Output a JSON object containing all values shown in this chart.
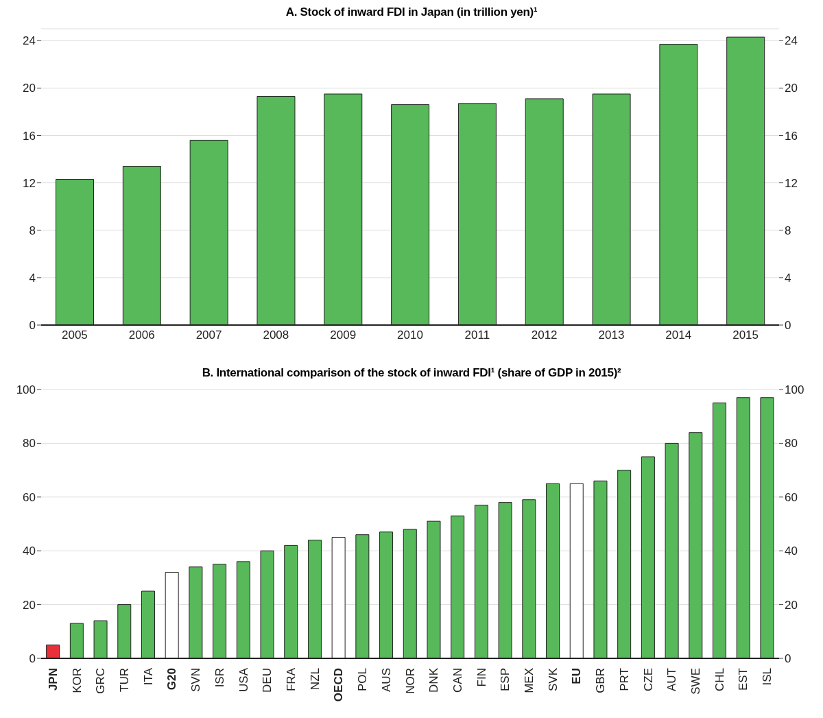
{
  "chart_data": [
    {
      "type": "bar",
      "title": "A. Stock of inward FDI in Japan (in trillion yen)¹",
      "categories": [
        "2005",
        "2006",
        "2007",
        "2008",
        "2009",
        "2010",
        "2011",
        "2012",
        "2013",
        "2014",
        "2015"
      ],
      "values": [
        12.3,
        13.4,
        15.6,
        19.3,
        19.5,
        18.6,
        18.7,
        19.1,
        19.5,
        23.7,
        24.3
      ],
      "color": "#57b95a",
      "ylim": [
        0,
        25
      ],
      "yticks": [
        0,
        4,
        8,
        12,
        16,
        20,
        24
      ],
      "y2lim": [
        0,
        25
      ],
      "y2ticks": [
        0,
        4,
        8,
        12,
        16,
        20,
        24
      ],
      "grid": "y"
    },
    {
      "type": "bar",
      "title": "B. International comparison of the stock of inward FDI¹ (share of GDP in 2015)²",
      "categories": [
        "JPN",
        "KOR",
        "GRC",
        "TUR",
        "ITA",
        "G20",
        "SVN",
        "ISR",
        "USA",
        "DEU",
        "FRA",
        "NZL",
        "OECD",
        "POL",
        "AUS",
        "NOR",
        "DNK",
        "CAN",
        "FIN",
        "ESP",
        "MEX",
        "SVK",
        "EU",
        "GBR",
        "PRT",
        "CZE",
        "AUT",
        "SWE",
        "CHL",
        "EST",
        "ISL"
      ],
      "values": [
        5,
        13,
        14,
        20,
        25,
        32,
        34,
        35,
        36,
        40,
        42,
        44,
        45,
        46,
        47,
        48,
        51,
        53,
        57,
        58,
        59,
        65,
        65,
        66,
        70,
        75,
        80,
        84,
        95,
        97,
        97
      ],
      "color": "#57b95a",
      "colors": [
        "#e8303a",
        "#57b95a",
        "#57b95a",
        "#57b95a",
        "#57b95a",
        "#ffffff",
        "#57b95a",
        "#57b95a",
        "#57b95a",
        "#57b95a",
        "#57b95a",
        "#57b95a",
        "#ffffff",
        "#57b95a",
        "#57b95a",
        "#57b95a",
        "#57b95a",
        "#57b95a",
        "#57b95a",
        "#57b95a",
        "#57b95a",
        "#57b95a",
        "#ffffff",
        "#57b95a",
        "#57b95a",
        "#57b95a",
        "#57b95a",
        "#57b95a",
        "#57b95a",
        "#57b95a",
        "#57b95a"
      ],
      "ylim": [
        0,
        100
      ],
      "yticks": [
        0,
        20,
        40,
        60,
        80,
        100
      ],
      "y2lim": [
        0,
        100
      ],
      "y2ticks": [
        0,
        20,
        40,
        60,
        80,
        100
      ],
      "grid": "y"
    }
  ]
}
